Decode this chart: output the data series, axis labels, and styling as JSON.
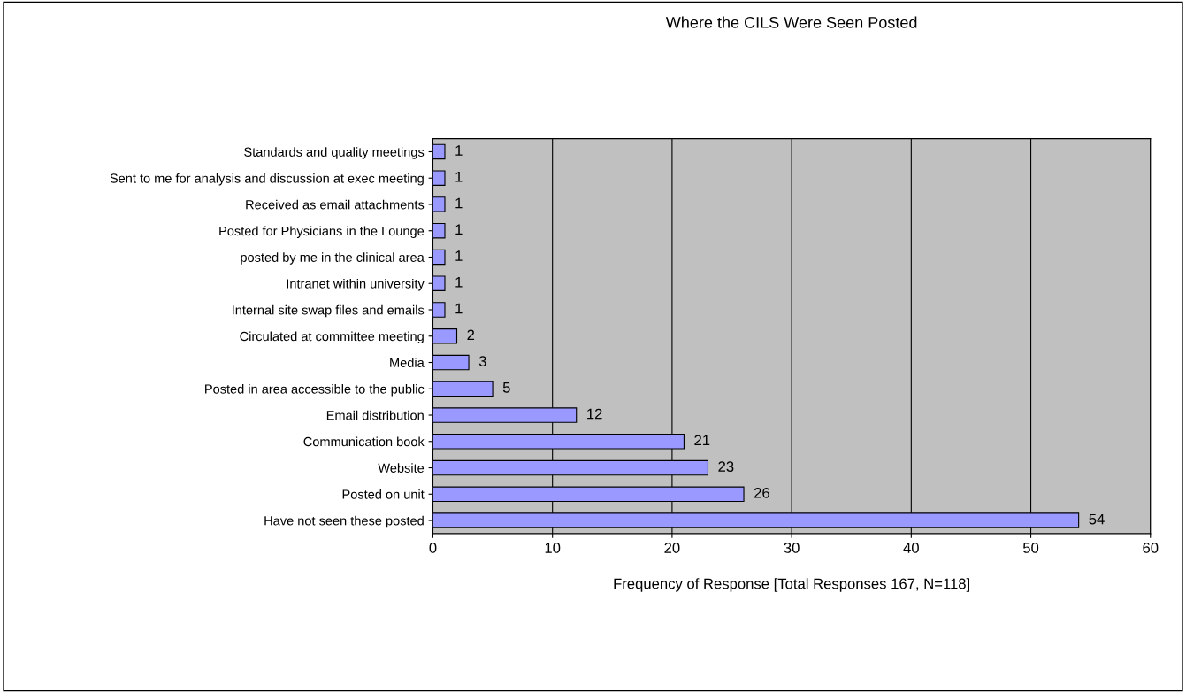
{
  "chart_data": {
    "type": "bar",
    "orientation": "horizontal",
    "title": "Where the CILS Were Seen Posted",
    "xlabel": "Frequency of Response [Total Responses 167, N=118]",
    "categories": [
      "Standards and quality meetings",
      "Sent to me for analysis and discussion at exec meeting",
      "Received as email attachments",
      "Posted for Physicians in the Lounge",
      "posted by me in the clinical area",
      "Intranet within university",
      "Internal site swap files and emails",
      "Circulated at committee meeting",
      "Media",
      "Posted in area accessible to the public",
      "Email distribution",
      "Communication book",
      "Website",
      "Posted on unit",
      "Have not seen these posted"
    ],
    "values": [
      1,
      1,
      1,
      1,
      1,
      1,
      1,
      2,
      3,
      5,
      12,
      21,
      23,
      26,
      54
    ],
    "color": "#9999ff",
    "xlim": [
      0,
      60
    ],
    "xticks": [
      0,
      10,
      20,
      30,
      40,
      50,
      60
    ],
    "grid": "x",
    "data_labels": true,
    "legend": false
  }
}
